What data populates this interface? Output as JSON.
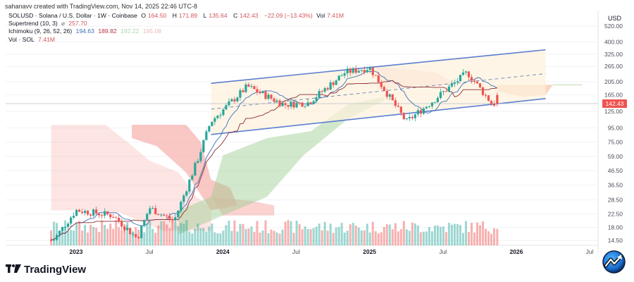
{
  "header": {
    "credit": "sahanavv created with TradingView.com, Nov 14, 2025 22:46 UTC-8",
    "symbol_line": "SOLUSD · Solana / U.S. Dollar · 1W · Coinbase",
    "ohlc": {
      "o_label": "O",
      "o": "164.50",
      "h_label": "H",
      "h": "171.89",
      "l_label": "L",
      "l": "135.64",
      "c_label": "C",
      "c": "142.43",
      "change": "−22.09 (−13.43%)",
      "vol_label": "Vol",
      "vol": "7.41M"
    },
    "supertrend": {
      "label": "Supertrend (10, 3)",
      "icon": "eye-slash-icon",
      "value": "257.70"
    },
    "ichimoku": {
      "label": "Ichimoku (9, 26, 52, 26)",
      "v1": "194.63",
      "v2": "189.82",
      "v3": "192.22",
      "v4": "195.08"
    },
    "volume": {
      "label": "Vol · SOL",
      "value": "7.41M"
    }
  },
  "price_axis": {
    "currency": "USD",
    "ticks": [
      "520.00",
      "400.00",
      "325.00",
      "265.00",
      "205.00",
      "165.00",
      "125.00",
      "95.00",
      "75.00",
      "59.00",
      "46.50",
      "36.50",
      "28.50",
      "22.50",
      "18.00",
      "14.50"
    ],
    "current_price": "142.43",
    "current_price_color": "#ef5350"
  },
  "time_axis": {
    "ticks": [
      {
        "label": "2023",
        "bold": true
      },
      {
        "label": "Jul",
        "bold": false
      },
      {
        "label": "2024",
        "bold": true
      },
      {
        "label": "Jul",
        "bold": false
      },
      {
        "label": "2025",
        "bold": true
      },
      {
        "label": "Jul",
        "bold": false
      },
      {
        "label": "2026",
        "bold": true
      },
      {
        "label": "Jul",
        "bold": false
      }
    ]
  },
  "branding": {
    "logo_mark": "TV",
    "logo_text": "TradingView",
    "corner_icon": "trend-badge-icon"
  },
  "colors": {
    "up": "#26a69a",
    "down": "#ef5350",
    "channel": "#5b7fd1",
    "channel_fill": "#fdf1dc",
    "cloud_bear": "#f7b4b0",
    "cloud_bull": "#cfe6c8",
    "tenkan": "#3f6fb5",
    "kijun": "#8b2e35"
  },
  "chart_data": {
    "type": "candlestick",
    "title": "SOLUSD · Solana / U.S. Dollar · 1W · Coinbase",
    "xlabel": "",
    "ylabel": "USD",
    "yscale": "log",
    "ylim": [
      13,
      560
    ],
    "x_ticks": [
      "2023",
      "Jul",
      "2024",
      "Jul",
      "2025",
      "Jul",
      "2026",
      "Jul"
    ],
    "y_ticks": [
      520,
      400,
      325,
      265,
      205,
      165,
      125,
      95,
      75,
      59,
      46.5,
      36.5,
      28.5,
      22.5,
      18,
      14.5
    ],
    "last_bar": {
      "open": 164.5,
      "high": 171.89,
      "low": 135.64,
      "close": 142.43,
      "change": -22.09,
      "change_pct": -13.43,
      "volume": "7.41M"
    },
    "indicators": {
      "supertrend": {
        "params": [
          10,
          3
        ],
        "value": 257.7
      },
      "ichimoku": {
        "params": [
          9,
          26,
          52,
          26
        ],
        "values": [
          194.63,
          189.82,
          192.22,
          195.08
        ]
      },
      "volume": {
        "value": "7.41M"
      }
    },
    "approx_price_path": [
      {
        "period": "Oct 2022",
        "price": 33
      },
      {
        "period": "Nov 2022",
        "price": 14
      },
      {
        "period": "Jan 2023",
        "price": 24
      },
      {
        "period": "Apr 2023",
        "price": 22
      },
      {
        "period": "Jun 2023",
        "price": 15
      },
      {
        "period": "Jul 2023",
        "price": 25
      },
      {
        "period": "Sep 2023",
        "price": 20
      },
      {
        "period": "Nov 2023",
        "price": 58
      },
      {
        "period": "Dec 2023",
        "price": 105
      },
      {
        "period": "Mar 2024",
        "price": 190
      },
      {
        "period": "Jun 2024",
        "price": 140
      },
      {
        "period": "Aug 2024",
        "price": 145
      },
      {
        "period": "Nov 2024",
        "price": 240
      },
      {
        "period": "Jan 2025",
        "price": 260
      },
      {
        "period": "Apr 2025",
        "price": 105
      },
      {
        "period": "Jun 2025",
        "price": 145
      },
      {
        "period": "Sep 2025",
        "price": 240
      },
      {
        "period": "Nov 2025",
        "price": 142.43
      }
    ],
    "annotations": [
      {
        "type": "parallel_channel",
        "from": "Nov 2023",
        "to": "Mar 2026",
        "upper": [
          200,
          350
        ],
        "lower": [
          85,
          155
        ]
      }
    ]
  }
}
